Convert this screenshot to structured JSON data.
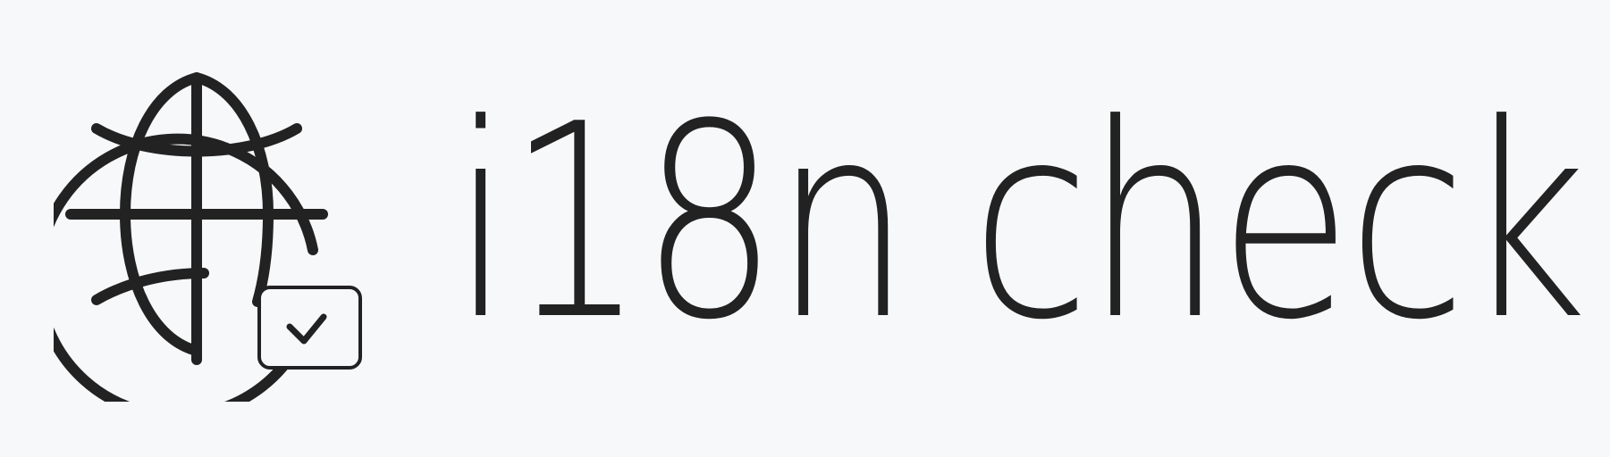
{
  "brand": {
    "name": "i18n check"
  },
  "icons": {
    "globe": "globe-icon",
    "checkbox": "checked-checkbox-icon"
  },
  "colors": {
    "background": "#f7f8fa",
    "foreground": "#222222"
  }
}
